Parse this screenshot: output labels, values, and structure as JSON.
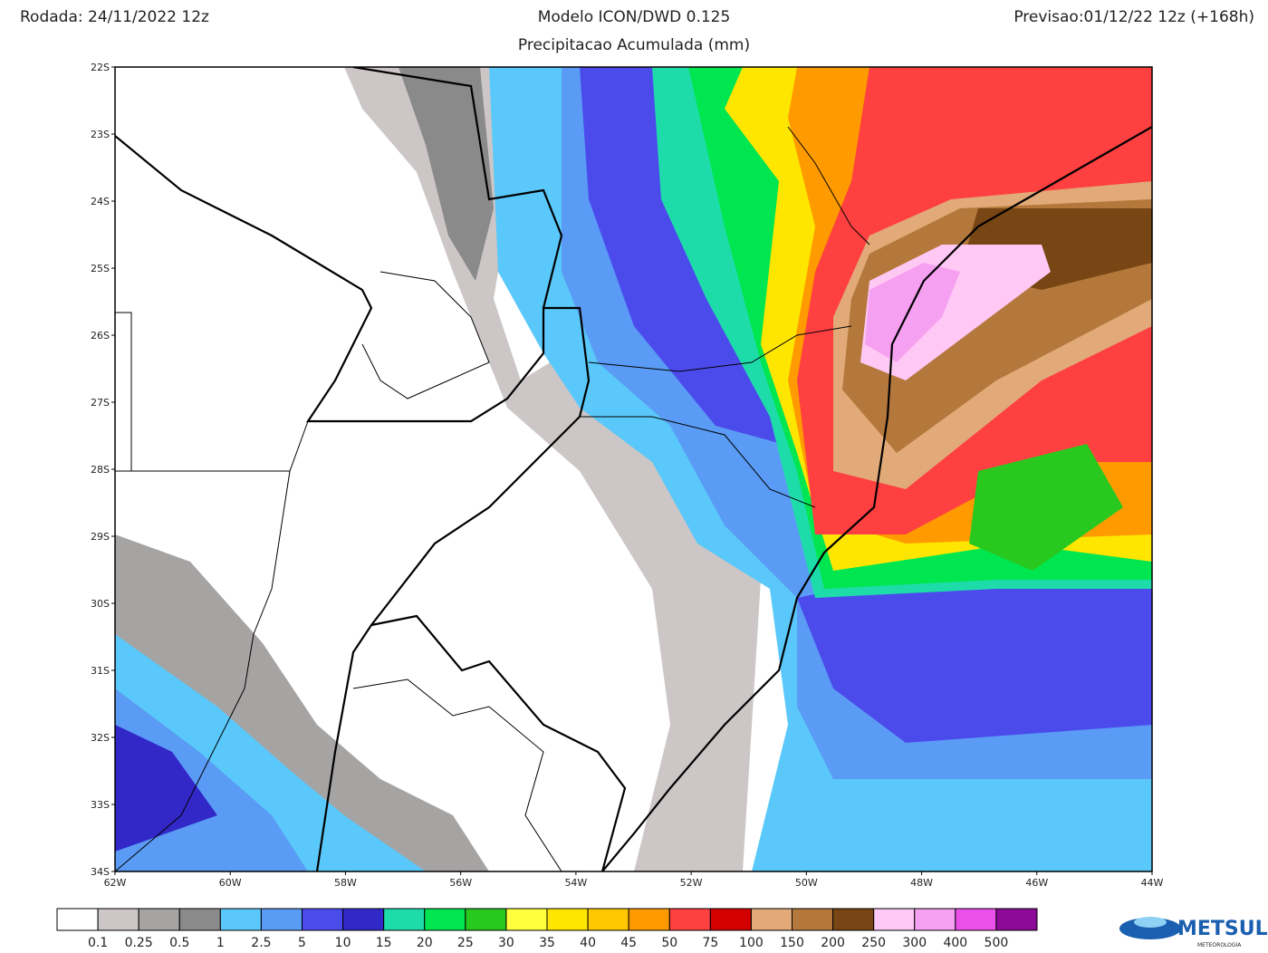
{
  "header": {
    "run": "Rodada: 24/11/2022 12z",
    "title": "Modelo ICON/DWD 0.125",
    "subtitle": "Precipitacao Acumulada (mm)",
    "forecast": "Previsao:01/12/22 12z (+168h)"
  },
  "map": {
    "lat_labels": [
      "22S",
      "23S",
      "24S",
      "25S",
      "26S",
      "27S",
      "28S",
      "29S",
      "30S",
      "31S",
      "32S",
      "33S",
      "34S"
    ],
    "lon_labels": [
      "62W",
      "60W",
      "58W",
      "56W",
      "54W",
      "52W",
      "50W",
      "48W",
      "46W",
      "44W"
    ]
  },
  "legend": {
    "colors": [
      "#ffffff",
      "#cdc6c6",
      "#a6a3a3",
      "#8a8a8a",
      "#5ac8fa",
      "#5a9bf5",
      "#4b4bec",
      "#3228c8",
      "#1edcaa",
      "#00e650",
      "#28c81e",
      "#ffff3c",
      "#ffe600",
      "#ffc800",
      "#ff9b00",
      "#ff4040",
      "#d20000",
      "#e1aa78",
      "#b4783c",
      "#784614",
      "#ffc8f5",
      "#f5a0f0",
      "#eb50eb",
      "#8c0a96"
    ],
    "labels": [
      "0.1",
      "0.25",
      "0.5",
      "1",
      "2.5",
      "5",
      "10",
      "15",
      "20",
      "25",
      "30",
      "35",
      "40",
      "45",
      "50",
      "75",
      "100",
      "150",
      "200",
      "250",
      "300",
      "400",
      "500"
    ]
  },
  "logo": {
    "name": "METSUL",
    "tagline": "METEOROLOGIA"
  }
}
